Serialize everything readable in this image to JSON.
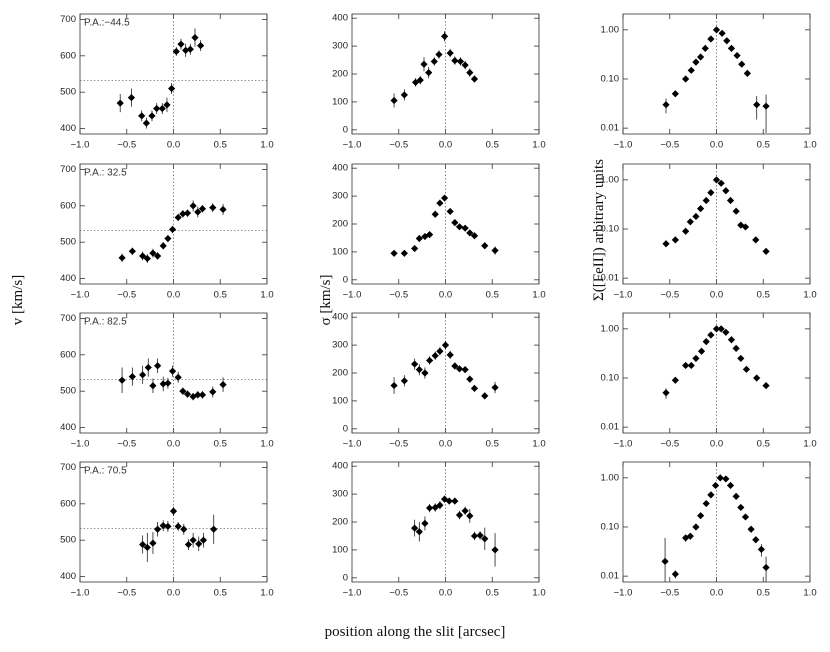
{
  "figure": {
    "xlabel": "position along the slit [arcsec]",
    "ylabels": [
      "v [km/s]",
      "σ [km/s]",
      "Σ([FeII]) arbitrary units"
    ]
  },
  "chart_data": [
    {
      "type": "scatter",
      "color": "#000000",
      "annotation": "P.A.:−44.5",
      "vline": 0,
      "hline": 532,
      "x": [
        -0.57,
        -0.45,
        -0.34,
        -0.29,
        -0.23,
        -0.18,
        -0.12,
        -0.07,
        -0.02,
        0.03,
        0.08,
        0.13,
        0.18,
        0.23,
        0.29
      ],
      "values": [
        470,
        485,
        435,
        415,
        435,
        455,
        455,
        465,
        510,
        612,
        632,
        615,
        618,
        650,
        628
      ],
      "errors": [
        25,
        25,
        15,
        15,
        15,
        15,
        15,
        20,
        15,
        12,
        15,
        18,
        15,
        25,
        15
      ],
      "xlim": [
        -1,
        1
      ],
      "xticks": [
        {
          "value": -1,
          "label": "−1.0"
        },
        {
          "value": -0.5,
          "label": "−0.5"
        },
        {
          "value": 0,
          "label": "0.0"
        },
        {
          "value": 0.5,
          "label": "0.5"
        },
        {
          "value": 1,
          "label": "1.0"
        }
      ],
      "ylim": [
        385,
        715
      ],
      "yticks": [
        400,
        500,
        600,
        700
      ]
    },
    {
      "type": "scatter",
      "color": "#000000",
      "vline": 0,
      "x": [
        -0.55,
        -0.44,
        -0.32,
        -0.27,
        -0.23,
        -0.18,
        -0.12,
        -0.07,
        -0.01,
        0.05,
        0.1,
        0.16,
        0.21,
        0.26,
        0.31
      ],
      "values": [
        105,
        125,
        170,
        178,
        235,
        205,
        245,
        270,
        335,
        275,
        248,
        245,
        232,
        205,
        182
      ],
      "errors": [
        25,
        20,
        15,
        15,
        25,
        20,
        15,
        15,
        18,
        15,
        15,
        15,
        15,
        15,
        12
      ],
      "xlim": [
        -1,
        1
      ],
      "xticks": [
        {
          "value": -1,
          "label": "−1.0"
        },
        {
          "value": -0.5,
          "label": "−0.5"
        },
        {
          "value": 0,
          "label": "0.0"
        },
        {
          "value": 0.5,
          "label": "0.5"
        },
        {
          "value": 1,
          "label": "1.0"
        }
      ],
      "ylim": [
        -15,
        415
      ],
      "yticks": [
        0,
        100,
        200,
        300,
        400
      ]
    },
    {
      "type": "scatter",
      "color": "#000000",
      "vline": 0,
      "log_scale": true,
      "x": [
        -0.54,
        -0.44,
        -0.33,
        -0.27,
        -0.22,
        -0.17,
        -0.12,
        -0.06,
        0.0,
        0.06,
        0.11,
        0.16,
        0.22,
        0.27,
        0.33,
        0.43,
        0.53
      ],
      "values": [
        0.03,
        0.05,
        0.1,
        0.15,
        0.22,
        0.28,
        0.42,
        0.65,
        1.0,
        0.85,
        0.6,
        0.42,
        0.3,
        0.2,
        0.13,
        0.03,
        0.028
      ],
      "errors": [
        0.01,
        0.005,
        0.008,
        0.01,
        0.015,
        0.02,
        0.03,
        0.04,
        0.06,
        0.05,
        0.04,
        0.03,
        0.02,
        0.015,
        0.01,
        0.015,
        0.02
      ],
      "xlim": [
        -1,
        1
      ],
      "xticks": [
        {
          "value": -1,
          "label": "−1.0"
        },
        {
          "value": -0.5,
          "label": "−0.5"
        },
        {
          "value": 0,
          "label": "0.0"
        },
        {
          "value": 0.5,
          "label": "0.5"
        },
        {
          "value": 1,
          "label": "1.0"
        }
      ],
      "ylim": [
        0.0076,
        2.1
      ],
      "yticks": [
        0.01,
        {
          "value": 0.1,
          "label": "0.10"
        },
        {
          "value": 1,
          "label": "1.00"
        }
      ]
    },
    {
      "type": "scatter",
      "color": "#000000",
      "annotation": "P.A.: 32.5",
      "vline": 0,
      "hline": 532,
      "x": [
        -0.55,
        -0.44,
        -0.33,
        -0.28,
        -0.22,
        -0.17,
        -0.11,
        -0.06,
        -0.01,
        0.05,
        0.1,
        0.15,
        0.21,
        0.26,
        0.31,
        0.42,
        0.53
      ],
      "values": [
        457,
        475,
        462,
        455,
        470,
        462,
        490,
        510,
        535,
        568,
        578,
        580,
        600,
        583,
        592,
        595,
        590
      ],
      "errors": [
        12,
        10,
        12,
        12,
        12,
        10,
        10,
        10,
        10,
        10,
        10,
        10,
        15,
        15,
        10,
        12,
        15
      ],
      "xlim": [
        -1,
        1
      ],
      "xticks": [
        {
          "value": -1,
          "label": "−1.0"
        },
        {
          "value": -0.5,
          "label": "−0.5"
        },
        {
          "value": 0,
          "label": "0.0"
        },
        {
          "value": 0.5,
          "label": "0.5"
        },
        {
          "value": 1,
          "label": "1.0"
        }
      ],
      "ylim": [
        385,
        715
      ],
      "yticks": [
        400,
        500,
        600,
        700
      ]
    },
    {
      "type": "scatter",
      "color": "#000000",
      "vline": 0,
      "x": [
        -0.55,
        -0.44,
        -0.33,
        -0.28,
        -0.22,
        -0.17,
        -0.11,
        -0.06,
        -0.01,
        0.05,
        0.1,
        0.15,
        0.21,
        0.26,
        0.31,
        0.42,
        0.53
      ],
      "values": [
        95,
        95,
        112,
        148,
        155,
        162,
        235,
        275,
        293,
        245,
        205,
        190,
        185,
        168,
        158,
        122,
        105
      ],
      "errors": [
        10,
        10,
        10,
        10,
        10,
        10,
        12,
        12,
        12,
        10,
        10,
        10,
        10,
        10,
        10,
        12,
        15
      ],
      "xlim": [
        -1,
        1
      ],
      "xticks": [
        {
          "value": -1,
          "label": "−1.0"
        },
        {
          "value": -0.5,
          "label": "−0.5"
        },
        {
          "value": 0,
          "label": "0.0"
        },
        {
          "value": 0.5,
          "label": "0.5"
        },
        {
          "value": 1,
          "label": "1.0"
        }
      ],
      "ylim": [
        -15,
        415
      ],
      "yticks": [
        0,
        100,
        200,
        300,
        400
      ]
    },
    {
      "type": "scatter",
      "color": "#000000",
      "vline": 0,
      "log_scale": true,
      "x": [
        -0.54,
        -0.44,
        -0.33,
        -0.28,
        -0.22,
        -0.17,
        -0.11,
        -0.06,
        0.0,
        0.05,
        0.1,
        0.15,
        0.21,
        0.26,
        0.31,
        0.42,
        0.53
      ],
      "values": [
        0.05,
        0.06,
        0.09,
        0.14,
        0.18,
        0.26,
        0.38,
        0.55,
        1.0,
        0.85,
        0.6,
        0.38,
        0.23,
        0.12,
        0.11,
        0.06,
        0.035
      ],
      "errors": [
        0.004,
        0.004,
        0.006,
        0.01,
        0.012,
        0.015,
        0.02,
        0.03,
        0.05,
        0.05,
        0.04,
        0.02,
        0.015,
        0.008,
        0.007,
        0.004,
        0.004
      ],
      "xlim": [
        -1,
        1
      ],
      "xticks": [
        {
          "value": -1,
          "label": "−1.0"
        },
        {
          "value": -0.5,
          "label": "−0.5"
        },
        {
          "value": 0,
          "label": "0.0"
        },
        {
          "value": 0.5,
          "label": "0.5"
        },
        {
          "value": 1,
          "label": "1.0"
        }
      ],
      "ylim": [
        0.0076,
        2.1
      ],
      "yticks": [
        0.01,
        {
          "value": 0.1,
          "label": "0.10"
        },
        {
          "value": 1,
          "label": "1.00"
        }
      ]
    },
    {
      "type": "scatter",
      "color": "#000000",
      "annotation": "P.A.: 82.5",
      "vline": 0,
      "hline": 532,
      "x": [
        -0.55,
        -0.44,
        -0.33,
        -0.27,
        -0.22,
        -0.17,
        -0.11,
        -0.06,
        -0.01,
        0.05,
        0.1,
        0.15,
        0.21,
        0.26,
        0.31,
        0.42,
        0.53
      ],
      "values": [
        530,
        540,
        545,
        565,
        515,
        570,
        520,
        522,
        555,
        538,
        500,
        492,
        485,
        490,
        490,
        498,
        518
      ],
      "errors": [
        35,
        25,
        25,
        25,
        20,
        20,
        20,
        15,
        15,
        15,
        10,
        10,
        10,
        10,
        10,
        15,
        20
      ],
      "xlim": [
        -1,
        1
      ],
      "xticks": [
        {
          "value": -1,
          "label": "−1.0"
        },
        {
          "value": -0.5,
          "label": "−0.5"
        },
        {
          "value": 0,
          "label": "0.0"
        },
        {
          "value": 0.5,
          "label": "0.5"
        },
        {
          "value": 1,
          "label": "1.0"
        }
      ],
      "ylim": [
        385,
        715
      ],
      "yticks": [
        400,
        500,
        600,
        700
      ]
    },
    {
      "type": "scatter",
      "color": "#000000",
      "vline": 0,
      "x": [
        -0.55,
        -0.44,
        -0.33,
        -0.28,
        -0.22,
        -0.17,
        -0.11,
        -0.06,
        0.0,
        0.05,
        0.1,
        0.15,
        0.21,
        0.26,
        0.31,
        0.42,
        0.53
      ],
      "values": [
        155,
        172,
        232,
        212,
        200,
        245,
        262,
        278,
        300,
        265,
        225,
        215,
        212,
        178,
        145,
        118,
        148
      ],
      "errors": [
        30,
        20,
        20,
        20,
        20,
        15,
        15,
        15,
        15,
        15,
        12,
        12,
        12,
        12,
        10,
        12,
        20
      ],
      "xlim": [
        -1,
        1
      ],
      "xticks": [
        {
          "value": -1,
          "label": "−1.0"
        },
        {
          "value": -0.5,
          "label": "−0.5"
        },
        {
          "value": 0,
          "label": "0.0"
        },
        {
          "value": 0.5,
          "label": "0.5"
        },
        {
          "value": 1,
          "label": "1.0"
        }
      ],
      "ylim": [
        -15,
        415
      ],
      "yticks": [
        0,
        100,
        200,
        300,
        400
      ]
    },
    {
      "type": "scatter",
      "color": "#000000",
      "vline": 0,
      "log_scale": true,
      "x": [
        -0.54,
        -0.44,
        -0.33,
        -0.27,
        -0.22,
        -0.16,
        -0.11,
        -0.06,
        0.0,
        0.05,
        0.1,
        0.16,
        0.21,
        0.26,
        0.32,
        0.43,
        0.53
      ],
      "values": [
        0.05,
        0.09,
        0.18,
        0.18,
        0.25,
        0.35,
        0.55,
        0.75,
        1.0,
        1.0,
        0.85,
        0.6,
        0.4,
        0.25,
        0.15,
        0.1,
        0.07
      ],
      "errors": [
        0.012,
        0.01,
        0.015,
        0.015,
        0.02,
        0.025,
        0.04,
        0.05,
        0.06,
        0.06,
        0.05,
        0.04,
        0.03,
        0.02,
        0.01,
        0.008,
        0.008
      ],
      "xlim": [
        -1,
        1
      ],
      "xticks": [
        {
          "value": -1,
          "label": "−1.0"
        },
        {
          "value": -0.5,
          "label": "−0.5"
        },
        {
          "value": 0,
          "label": "0.0"
        },
        {
          "value": 0.5,
          "label": "0.5"
        },
        {
          "value": 1,
          "label": "1.0"
        }
      ],
      "ylim": [
        0.0076,
        2.1
      ],
      "yticks": [
        0.01,
        {
          "value": 0.1,
          "label": "0.10"
        },
        {
          "value": 1,
          "label": "1.00"
        }
      ]
    },
    {
      "type": "scatter",
      "color": "#000000",
      "annotation": "P.A.: 70.5",
      "vline": 0,
      "hline": 532,
      "x": [
        -0.33,
        -0.28,
        -0.22,
        -0.17,
        -0.11,
        -0.06,
        0.0,
        0.05,
        0.11,
        0.16,
        0.21,
        0.27,
        0.32,
        0.43
      ],
      "values": [
        488,
        480,
        492,
        530,
        540,
        538,
        580,
        538,
        530,
        488,
        500,
        490,
        500,
        530
      ],
      "errors": [
        25,
        40,
        30,
        20,
        15,
        15,
        12,
        12,
        15,
        15,
        20,
        20,
        20,
        40
      ],
      "xlim": [
        -1,
        1
      ],
      "xticks": [
        {
          "value": -1,
          "label": "−1.0"
        },
        {
          "value": -0.5,
          "label": "−0.5"
        },
        {
          "value": 0,
          "label": "0.0"
        },
        {
          "value": 0.5,
          "label": "0.5"
        },
        {
          "value": 1,
          "label": "1.0"
        }
      ],
      "ylim": [
        385,
        715
      ],
      "yticks": [
        400,
        500,
        600,
        700
      ]
    },
    {
      "type": "scatter",
      "color": "#000000",
      "vline": 0,
      "x": [
        -0.33,
        -0.28,
        -0.22,
        -0.17,
        -0.11,
        -0.06,
        -0.01,
        0.04,
        0.1,
        0.15,
        0.21,
        0.26,
        0.31,
        0.37,
        0.42,
        0.53
      ],
      "values": [
        178,
        165,
        195,
        250,
        252,
        260,
        282,
        275,
        275,
        225,
        240,
        222,
        150,
        152,
        140,
        100
      ],
      "errors": [
        30,
        35,
        25,
        15,
        15,
        15,
        12,
        12,
        12,
        15,
        15,
        25,
        15,
        15,
        40,
        60
      ],
      "xlim": [
        -1,
        1
      ],
      "xticks": [
        {
          "value": -1,
          "label": "−1.0"
        },
        {
          "value": -0.5,
          "label": "−0.5"
        },
        {
          "value": 0,
          "label": "0.0"
        },
        {
          "value": 0.5,
          "label": "0.5"
        },
        {
          "value": 1,
          "label": "1.0"
        }
      ],
      "ylim": [
        -15,
        415
      ],
      "yticks": [
        0,
        100,
        200,
        300,
        400
      ]
    },
    {
      "type": "scatter",
      "color": "#000000",
      "vline": 0,
      "log_scale": true,
      "x": [
        -0.55,
        -0.44,
        -0.33,
        -0.28,
        -0.22,
        -0.17,
        -0.11,
        -0.06,
        -0.01,
        0.04,
        0.1,
        0.15,
        0.21,
        0.26,
        0.31,
        0.37,
        0.42,
        0.48,
        0.53
      ],
      "values": [
        0.02,
        0.011,
        0.06,
        0.065,
        0.1,
        0.17,
        0.3,
        0.45,
        0.7,
        1.0,
        0.95,
        0.7,
        0.42,
        0.25,
        0.16,
        0.09,
        0.055,
        0.035,
        0.015
      ],
      "errors": [
        0.04,
        0.002,
        0.01,
        0.01,
        0.01,
        0.015,
        0.02,
        0.03,
        0.04,
        0.06,
        0.06,
        0.04,
        0.03,
        0.02,
        0.01,
        0.008,
        0.006,
        0.01,
        0.01
      ],
      "xlim": [
        -1,
        1
      ],
      "xticks": [
        {
          "value": -1,
          "label": "−1.0"
        },
        {
          "value": -0.5,
          "label": "−0.5"
        },
        {
          "value": 0,
          "label": "0.0"
        },
        {
          "value": 0.5,
          "label": "0.5"
        },
        {
          "value": 1,
          "label": "1.0"
        }
      ],
      "ylim": [
        0.0076,
        2.1
      ],
      "yticks": [
        0.01,
        {
          "value": 0.1,
          "label": "0.10"
        },
        {
          "value": 1,
          "label": "1.00"
        }
      ]
    }
  ]
}
